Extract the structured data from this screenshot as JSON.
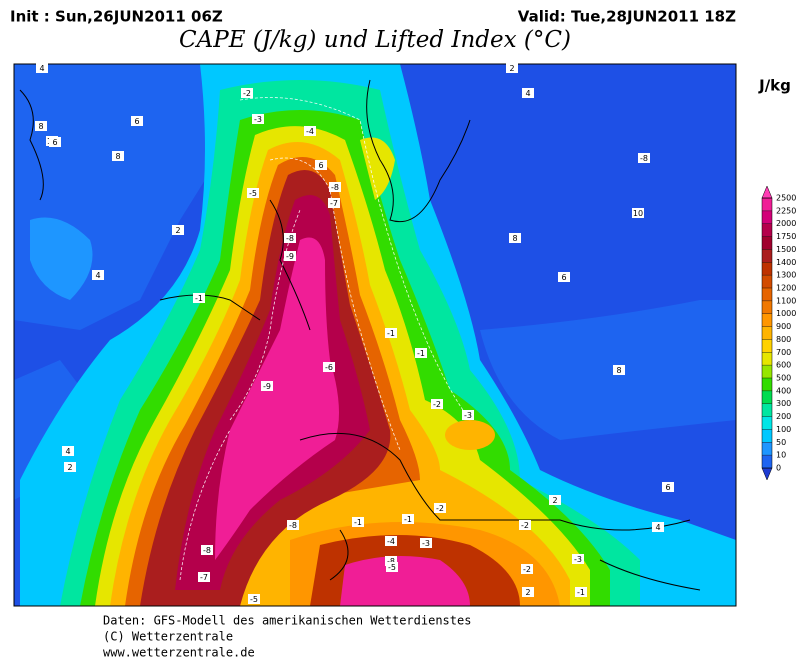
{
  "header": {
    "init": "Init : Sun,26JUN2011 06Z",
    "valid": "Valid: Tue,28JUN2011 18Z",
    "title": "CAPE (J/kg) und Lifted Index (°C)",
    "unit": "J/kg"
  },
  "colorbar": {
    "ticks": [
      0,
      10,
      50,
      100,
      200,
      300,
      400,
      500,
      600,
      700,
      800,
      900,
      1000,
      1100,
      1200,
      1300,
      1400,
      1500,
      1750,
      2000,
      2250,
      2500
    ],
    "colors": [
      "#1e3cd2",
      "#1e64f0",
      "#1e96ff",
      "#00c8ff",
      "#00e6e6",
      "#00e6a0",
      "#00dc50",
      "#32dc00",
      "#96e600",
      "#e6e600",
      "#ffd200",
      "#ffb400",
      "#ff9600",
      "#f07800",
      "#e66400",
      "#d24b00",
      "#be3200",
      "#aa1e1e",
      "#a0002d",
      "#b4004b",
      "#d20078",
      "#f01e96",
      "#ff3cb4"
    ]
  },
  "contour_labels": [
    4,
    2,
    4,
    -2,
    -3,
    -4,
    6,
    8,
    10,
    8,
    6,
    -5,
    -8,
    -7,
    -8,
    10,
    8,
    6,
    -8,
    -9,
    2,
    6,
    4,
    -1,
    -1,
    -1,
    -6,
    -9,
    8,
    -2,
    -3,
    4,
    2,
    6,
    2,
    -8,
    -1,
    -1,
    -2,
    -2,
    4,
    -8,
    -4,
    -3,
    -8,
    -5,
    -3,
    -2,
    -7,
    -5,
    2,
    -1
  ],
  "footer": {
    "line1": "Daten: GFS-Modell des amerikanischen Wetterdienstes",
    "line2": "(C) Wetterzentrale",
    "line3": "www.wetterzentrale.de"
  }
}
